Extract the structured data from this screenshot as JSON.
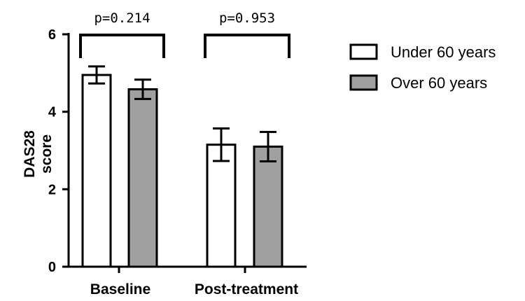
{
  "chart_data": {
    "type": "bar",
    "categories": [
      "Baseline",
      "Post-treatment"
    ],
    "ylabel_lines": [
      "DAS28",
      "score"
    ],
    "ylim": [
      0,
      6
    ],
    "yticks": [
      0,
      2,
      4,
      6
    ],
    "legend_position": "right",
    "series": [
      {
        "name": "Under 60 years",
        "color": "#ffffff",
        "values": [
          4.95,
          3.15
        ],
        "error": [
          0.22,
          0.42
        ]
      },
      {
        "name": "Over 60 years",
        "color": "#a0a0a0",
        "values": [
          4.58,
          3.1
        ],
        "error": [
          0.25,
          0.38
        ]
      }
    ],
    "annotations": [
      {
        "category_index": 0,
        "text": "p=0.214"
      },
      {
        "category_index": 1,
        "text": "p=0.953"
      }
    ]
  }
}
